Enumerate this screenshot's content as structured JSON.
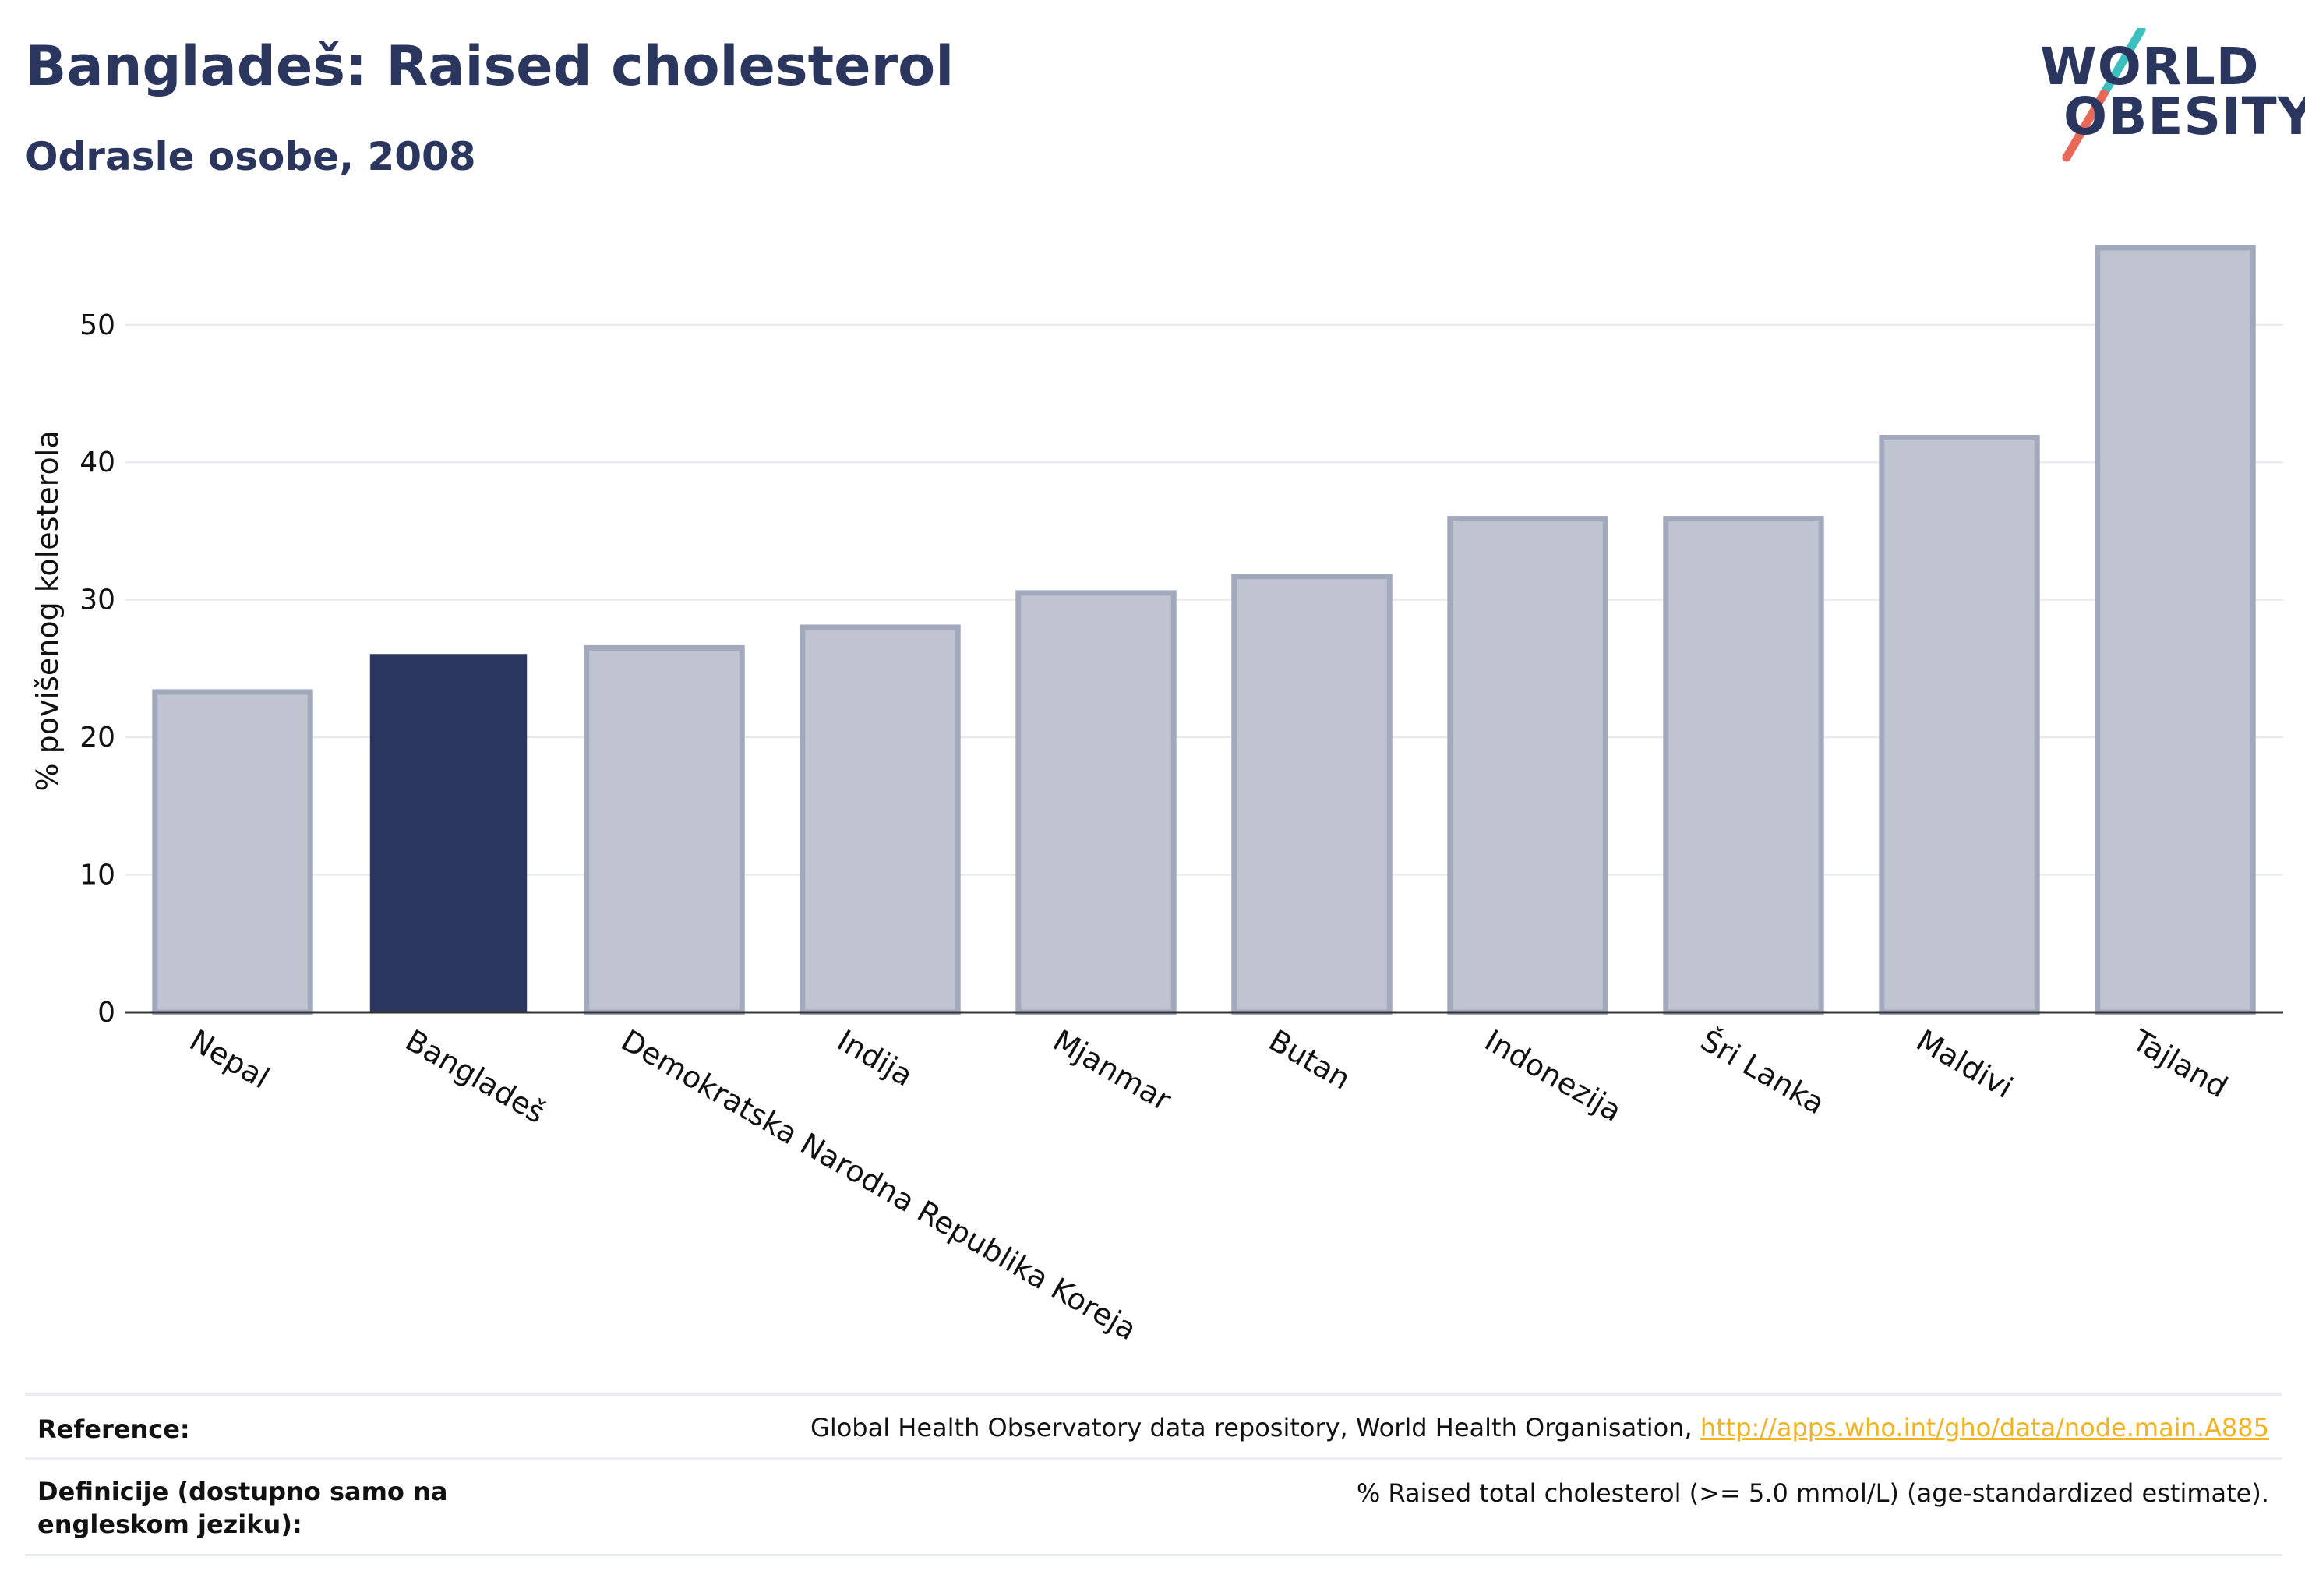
{
  "header": {
    "title": "Bangladeš: Raised cholesterol",
    "subtitle": "Odrasle osobe, 2008"
  },
  "logo": {
    "line1": "WORLD",
    "line2": "OBESITY",
    "colors": {
      "text": "#2b365f",
      "slash_top": "#3bbfbf",
      "slash_bottom": "#e8685a"
    }
  },
  "chart_data": {
    "type": "bar",
    "title": "",
    "xlabel": "",
    "ylabel": "% povišenog kolesterola",
    "categories": [
      "Nepal",
      "Bangladeš",
      "Demokratska Narodna Republika Koreja",
      "Indija",
      "Mjanmar",
      "Butan",
      "Indonezija",
      "Šri Lanka",
      "Maldivi",
      "Tajland"
    ],
    "values": [
      23.3,
      26.0,
      26.5,
      28.0,
      30.5,
      31.7,
      35.9,
      35.9,
      41.8,
      55.6
    ],
    "highlight": "Bangladeš",
    "yticks": [
      0,
      10,
      20,
      30,
      40,
      50
    ],
    "ylim": [
      0,
      58
    ],
    "grid": true,
    "colors": {
      "highlight": "#2b365f",
      "bar": "#c0c4d1",
      "bar_border": "#a3a9bc"
    }
  },
  "footer": {
    "reference_label": "Reference:",
    "reference_text": "Global Health Observatory data repository, World Health Organisation,",
    "reference_link": "http://apps.who.int/gho/data/node.main.A885",
    "definition_label": "Definicije (dostupno samo na engleskom jeziku):",
    "definition_text": "% Raised total cholesterol (>= 5.0 mmol/L) (age-standardized estimate)."
  }
}
